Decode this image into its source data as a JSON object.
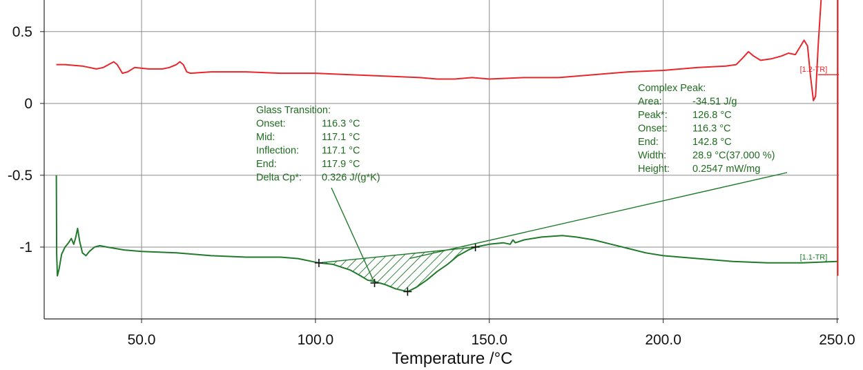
{
  "chart_data": {
    "type": "line",
    "title": "",
    "xlabel": "Temperature /°C",
    "ylabel": "",
    "xlim": [
      22,
      250.5
    ],
    "ylim": [
      -1.5,
      0.72
    ],
    "x_ticks": [
      50,
      100,
      150,
      200,
      250
    ],
    "x_tick_labels": [
      "50.0",
      "100.0",
      "150.0",
      "200.0",
      "250.0"
    ],
    "y_ticks": [
      0.5,
      0,
      -0.5,
      -1
    ],
    "y_tick_labels": [
      "0.5",
      "0",
      "-0.5",
      "-1"
    ],
    "grid": true,
    "colors": {
      "red_curve": "#e8262a",
      "green_curve": "#1f7a2a",
      "annotation": "#1f6b1f",
      "grid": "#8a8a8a"
    },
    "series": [
      {
        "name": "[1.2-TR]",
        "color": "#e8262a",
        "points": [
          [
            25.5,
            0.27
          ],
          [
            28,
            0.27
          ],
          [
            33,
            0.26
          ],
          [
            37,
            0.24
          ],
          [
            39,
            0.25
          ],
          [
            40.5,
            0.27
          ],
          [
            42,
            0.29
          ],
          [
            43,
            0.27
          ],
          [
            44.5,
            0.21
          ],
          [
            46,
            0.22
          ],
          [
            48,
            0.25
          ],
          [
            52,
            0.24
          ],
          [
            56,
            0.24
          ],
          [
            58,
            0.25
          ],
          [
            60,
            0.27
          ],
          [
            61,
            0.29
          ],
          [
            62,
            0.27
          ],
          [
            63,
            0.22
          ],
          [
            64,
            0.21
          ],
          [
            70,
            0.22
          ],
          [
            80,
            0.22
          ],
          [
            90,
            0.21
          ],
          [
            100,
            0.21
          ],
          [
            110,
            0.2
          ],
          [
            120,
            0.19
          ],
          [
            130,
            0.18
          ],
          [
            135,
            0.17
          ],
          [
            140,
            0.17
          ],
          [
            145,
            0.18
          ],
          [
            150,
            0.17
          ],
          [
            160,
            0.18
          ],
          [
            170,
            0.18
          ],
          [
            180,
            0.2
          ],
          [
            190,
            0.22
          ],
          [
            200,
            0.23
          ],
          [
            210,
            0.25
          ],
          [
            218,
            0.26
          ],
          [
            221,
            0.27
          ],
          [
            223,
            0.32
          ],
          [
            224.5,
            0.36
          ],
          [
            226,
            0.33
          ],
          [
            228,
            0.3
          ],
          [
            231,
            0.31
          ],
          [
            234,
            0.33
          ],
          [
            236,
            0.35
          ],
          [
            238,
            0.34
          ],
          [
            239.5,
            0.4
          ],
          [
            240.5,
            0.44
          ],
          [
            241.5,
            0.4
          ],
          [
            242.3,
            0.2
          ],
          [
            243.2,
            0.02
          ],
          [
            243.8,
            0.05
          ],
          [
            244.6,
            0.42
          ],
          [
            245.4,
            0.72
          ]
        ]
      },
      {
        "name": "[1.1-TR]",
        "color": "#1f7a2a",
        "points": [
          [
            25.5,
            -0.5
          ],
          [
            25.6,
            -1.05
          ],
          [
            25.8,
            -1.2
          ],
          [
            26.3,
            -1.15
          ],
          [
            27,
            -1.05
          ],
          [
            28,
            -1.0
          ],
          [
            29,
            -0.97
          ],
          [
            29.8,
            -0.94
          ],
          [
            30.5,
            -0.98
          ],
          [
            31,
            -0.94
          ],
          [
            31.6,
            -0.87
          ],
          [
            32.2,
            -0.96
          ],
          [
            33,
            -1.04
          ],
          [
            34,
            -1.06
          ],
          [
            35,
            -1.03
          ],
          [
            36.5,
            -1.0
          ],
          [
            38,
            -0.99
          ],
          [
            40,
            -1.0
          ],
          [
            45,
            -1.02
          ],
          [
            50,
            -1.03
          ],
          [
            60,
            -1.04
          ],
          [
            70,
            -1.06
          ],
          [
            80,
            -1.07
          ],
          [
            90,
            -1.07
          ],
          [
            95,
            -1.08
          ],
          [
            101,
            -1.11
          ],
          [
            105,
            -1.12
          ],
          [
            110,
            -1.16
          ],
          [
            113,
            -1.2
          ],
          [
            115,
            -1.23
          ],
          [
            117,
            -1.24
          ],
          [
            120,
            -1.26
          ],
          [
            123,
            -1.29
          ],
          [
            126.5,
            -1.31
          ],
          [
            129,
            -1.28
          ],
          [
            132,
            -1.23
          ],
          [
            135,
            -1.17
          ],
          [
            138,
            -1.12
          ],
          [
            141,
            -1.06
          ],
          [
            144,
            -1.02
          ],
          [
            146,
            -1.0
          ],
          [
            150,
            -0.98
          ],
          [
            154,
            -0.97
          ],
          [
            156,
            -0.98
          ],
          [
            156.8,
            -0.95
          ],
          [
            157.5,
            -0.97
          ],
          [
            160,
            -0.95
          ],
          [
            165,
            -0.93
          ],
          [
            171,
            -0.92
          ],
          [
            175,
            -0.93
          ],
          [
            180,
            -0.95
          ],
          [
            185,
            -0.98
          ],
          [
            190,
            -1.01
          ],
          [
            195,
            -1.04
          ],
          [
            200,
            -1.06
          ],
          [
            210,
            -1.08
          ],
          [
            220,
            -1.1
          ],
          [
            230,
            -1.11
          ],
          [
            240,
            -1.11
          ],
          [
            250,
            -1.1
          ]
        ]
      }
    ],
    "markers": [
      [
        101,
        -1.11
      ],
      [
        117,
        -1.25
      ],
      [
        126.5,
        -1.31
      ],
      [
        146,
        -1.0
      ]
    ],
    "hatched_area": {
      "x_start": 101,
      "x_end": 146,
      "baseline": [
        [
          101,
          -1.11
        ],
        [
          146,
          -1.0
        ]
      ]
    },
    "annotations": {
      "glass_transition": {
        "title": "Glass Transition:",
        "rows": [
          {
            "label": "Onset:",
            "value": "116.3 °C"
          },
          {
            "label": "Mid:",
            "value": "117.1 °C"
          },
          {
            "label": "Inflection:",
            "value": "117.1 °C"
          },
          {
            "label": "End:",
            "value": "117.9 °C"
          },
          {
            "label": "Delta Cp*:",
            "value": "0.326 J/(g*K)"
          }
        ]
      },
      "complex_peak": {
        "title": "Complex Peak:",
        "rows": [
          {
            "label": "Area:",
            "value": "-34.51 J/g"
          },
          {
            "label": "Peak*:",
            "value": "126.8 °C"
          },
          {
            "label": "Onset:",
            "value": "116.3 °C"
          },
          {
            "label": "End:",
            "value": "142.8 °C"
          },
          {
            "label": "Width:",
            "value": "28.9 °C(37.000 %)"
          },
          {
            "label": "Height:",
            "value": "0.2547 mW/mg"
          }
        ]
      }
    }
  }
}
